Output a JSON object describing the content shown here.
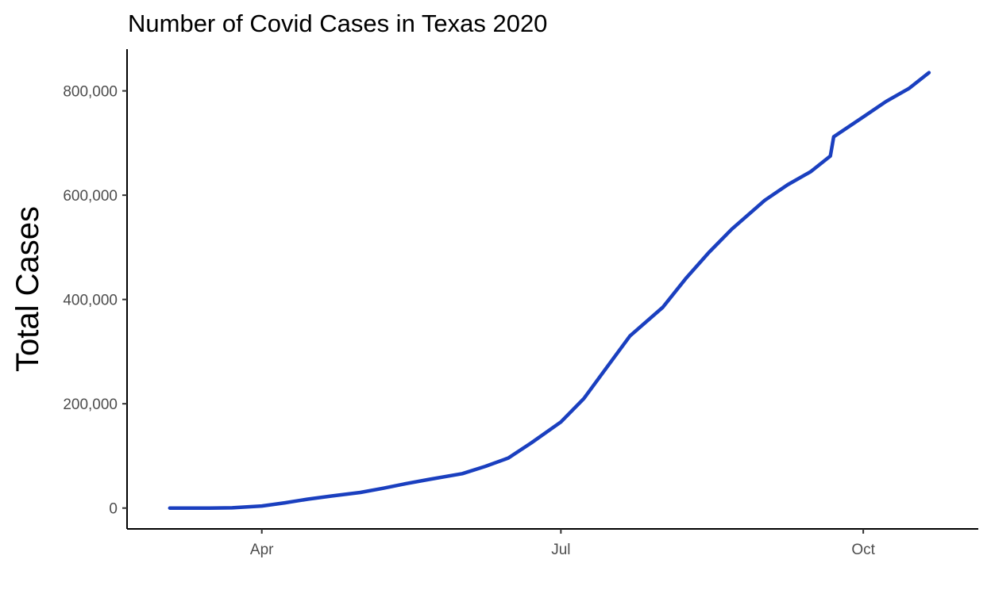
{
  "chart_data": {
    "type": "line",
    "title": "Number of Covid Cases in Texas 2020",
    "xlabel": "",
    "ylabel": "Total Cases",
    "color": "#1a3fbf",
    "xlim": [
      "2020-02-20",
      "2020-11-05"
    ],
    "ylim": [
      -40000,
      880000
    ],
    "x_ticks": [
      {
        "date": "2020-04-01",
        "label": "Apr"
      },
      {
        "date": "2020-07-01",
        "label": "Jul"
      },
      {
        "date": "2020-10-01",
        "label": "Oct"
      }
    ],
    "y_ticks": [
      {
        "value": 0,
        "label": "0"
      },
      {
        "value": 200000,
        "label": "200,000"
      },
      {
        "value": 400000,
        "label": "400,000"
      },
      {
        "value": 600000,
        "label": "600,000"
      },
      {
        "value": 800000,
        "label": "800,000"
      }
    ],
    "grid": false,
    "legend": "none",
    "series": [
      {
        "x": [
          "2020-03-04",
          "2020-03-16",
          "2020-03-23",
          "2020-04-01",
          "2020-04-08",
          "2020-04-15",
          "2020-04-22",
          "2020-05-01",
          "2020-05-08",
          "2020-05-15",
          "2020-05-22",
          "2020-06-01",
          "2020-06-08",
          "2020-06-15",
          "2020-06-22",
          "2020-07-01",
          "2020-07-08",
          "2020-07-15",
          "2020-07-22",
          "2020-08-01",
          "2020-08-08",
          "2020-08-15",
          "2020-08-22",
          "2020-09-01",
          "2020-09-08",
          "2020-09-15",
          "2020-09-21",
          "2020-09-22",
          "2020-10-01",
          "2020-10-08",
          "2020-10-15",
          "2020-10-21"
        ],
        "y": [
          0,
          0,
          500,
          4000,
          10000,
          17000,
          23000,
          30000,
          38000,
          47000,
          55000,
          66000,
          80000,
          96000,
          125000,
          165000,
          210000,
          270000,
          330000,
          385000,
          440000,
          490000,
          535000,
          590000,
          620000,
          645000,
          675000,
          712000,
          750000,
          780000,
          805000,
          835000
        ]
      }
    ]
  }
}
